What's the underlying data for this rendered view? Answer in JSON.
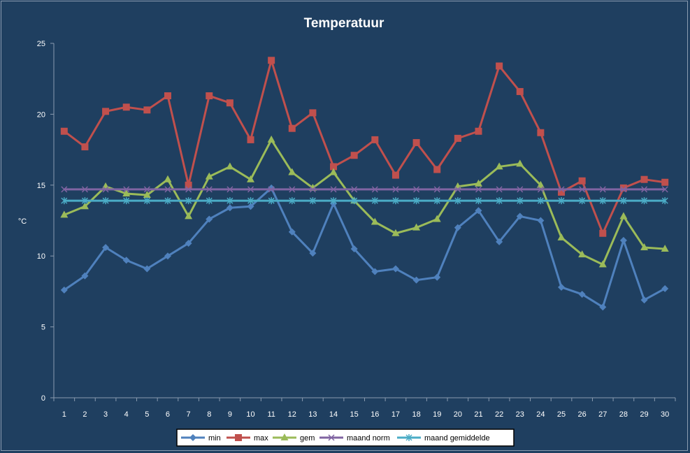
{
  "chart_data": {
    "type": "line",
    "title": "Temperatuur",
    "ylabel": "°C",
    "xlabel": "",
    "ylim": [
      0,
      25
    ],
    "yticks": [
      0,
      5,
      10,
      15,
      20,
      25
    ],
    "x": [
      "1",
      "2",
      "3",
      "4",
      "5",
      "6",
      "7",
      "8",
      "9",
      "10",
      "11",
      "12",
      "13",
      "14",
      "15",
      "16",
      "17",
      "18",
      "19",
      "20",
      "21",
      "22",
      "23",
      "24",
      "25",
      "26",
      "27",
      "28",
      "29",
      "30"
    ],
    "grid": false,
    "legend_position": "bottom",
    "series": [
      {
        "name": "min",
        "color": "#4f81bd",
        "marker": "diamond",
        "values": [
          7.6,
          8.6,
          10.6,
          9.7,
          9.1,
          10.0,
          10.9,
          12.6,
          13.4,
          13.5,
          14.8,
          11.7,
          10.2,
          13.7,
          10.5,
          8.9,
          9.1,
          8.3,
          8.5,
          12.0,
          13.2,
          11.0,
          12.8,
          12.5,
          7.8,
          7.3,
          6.4,
          11.1,
          6.9,
          7.7
        ]
      },
      {
        "name": "max",
        "color": "#c0504d",
        "marker": "square",
        "values": [
          18.8,
          17.7,
          20.2,
          20.5,
          20.3,
          21.3,
          15.0,
          21.3,
          20.8,
          18.2,
          23.8,
          19.0,
          20.1,
          16.3,
          17.1,
          18.2,
          15.7,
          18.0,
          16.1,
          18.3,
          18.8,
          23.4,
          21.6,
          18.7,
          14.5,
          15.3,
          11.6,
          14.8,
          15.4,
          15.2
        ]
      },
      {
        "name": "gem",
        "color": "#9bbb59",
        "marker": "triangle",
        "values": [
          12.9,
          13.5,
          14.9,
          14.4,
          14.3,
          15.4,
          12.8,
          15.6,
          16.3,
          15.4,
          18.2,
          15.9,
          14.8,
          15.9,
          13.9,
          12.4,
          11.6,
          12.0,
          12.6,
          14.9,
          15.1,
          16.3,
          16.5,
          15.0,
          11.3,
          10.1,
          9.4,
          12.8,
          10.6,
          10.5
        ]
      },
      {
        "name": "maand norm",
        "color": "#8064a2",
        "marker": "x",
        "values": [
          14.7,
          14.7,
          14.7,
          14.7,
          14.7,
          14.7,
          14.7,
          14.7,
          14.7,
          14.7,
          14.7,
          14.7,
          14.7,
          14.7,
          14.7,
          14.7,
          14.7,
          14.7,
          14.7,
          14.7,
          14.7,
          14.7,
          14.7,
          14.7,
          14.7,
          14.7,
          14.7,
          14.7,
          14.7,
          14.7
        ]
      },
      {
        "name": "maand gemiddelde",
        "color": "#4bacc6",
        "marker": "star",
        "values": [
          13.9,
          13.9,
          13.9,
          13.9,
          13.9,
          13.9,
          13.9,
          13.9,
          13.9,
          13.9,
          13.9,
          13.9,
          13.9,
          13.9,
          13.9,
          13.9,
          13.9,
          13.9,
          13.9,
          13.9,
          13.9,
          13.9,
          13.9,
          13.9,
          13.9,
          13.9,
          13.9,
          13.9,
          13.9,
          13.9
        ]
      }
    ]
  }
}
